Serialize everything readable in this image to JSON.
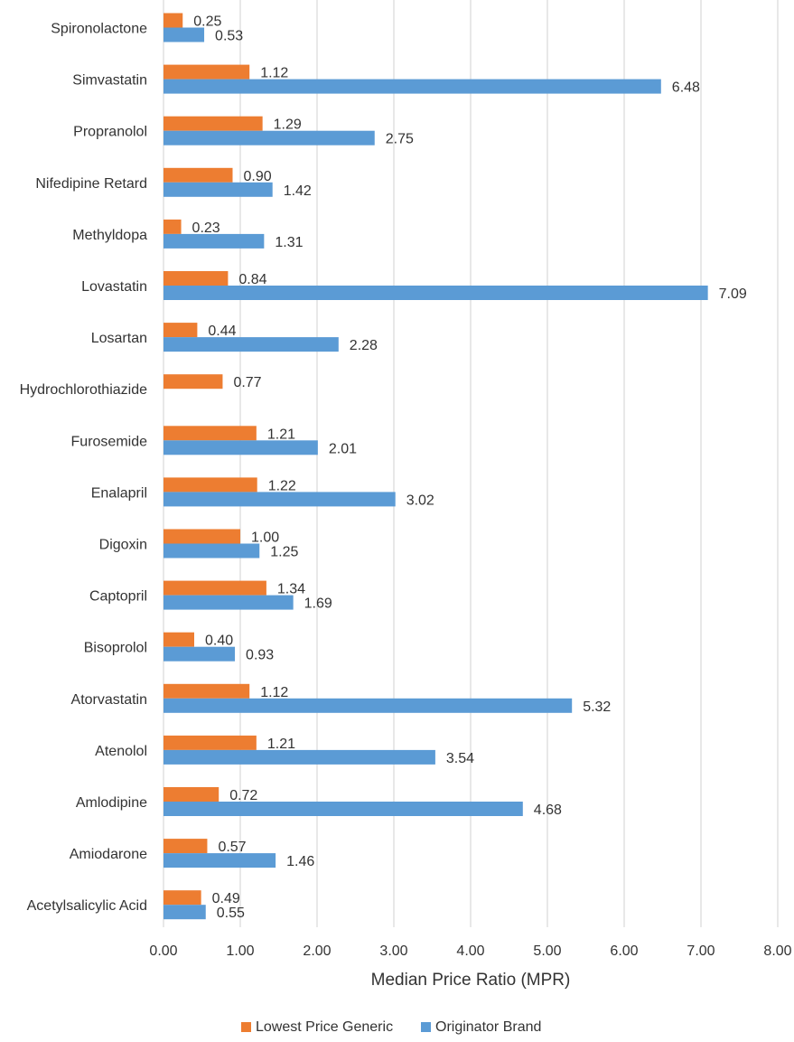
{
  "chart_data": {
    "type": "bar",
    "orientation": "horizontal",
    "categories": [
      "Spironolactone",
      "Simvastatin",
      "Propranolol",
      "Nifedipine Retard",
      "Methyldopa",
      "Lovastatin",
      "Losartan",
      "Hydrochlorothiazide",
      "Furosemide",
      "Enalapril",
      "Digoxin",
      "Captopril",
      "Bisoprolol",
      "Atorvastatin",
      "Atenolol",
      "Amlodipine",
      "Amiodarone",
      "Acetylsalicylic Acid"
    ],
    "series": [
      {
        "name": "Lowest Price Generic",
        "color": "#ed7d31",
        "values": [
          0.25,
          1.12,
          1.29,
          0.9,
          0.23,
          0.84,
          0.44,
          0.77,
          1.21,
          1.22,
          1.0,
          1.34,
          0.4,
          1.12,
          1.21,
          0.72,
          0.57,
          0.49
        ],
        "labels": [
          "0.25",
          "1.12",
          "1.29",
          "0.90",
          "0.23",
          "0.84",
          "0.44",
          "0.77",
          "1.21",
          "1.22",
          "1.00",
          "1.34",
          "0.40",
          "1.12",
          "1.21",
          "0.72",
          "0.57",
          "0.49"
        ]
      },
      {
        "name": "Originator Brand",
        "color": "#5b9bd5",
        "values": [
          0.53,
          6.48,
          2.75,
          1.42,
          1.31,
          7.09,
          2.28,
          null,
          2.01,
          3.02,
          1.25,
          1.69,
          0.93,
          5.32,
          3.54,
          4.68,
          1.46,
          0.55
        ],
        "labels": [
          "0.53",
          "6.48",
          "2.75",
          "1.42",
          "1.31",
          "7.09",
          "2.28",
          "",
          "2.01",
          "3.02",
          "1.25",
          "1.69",
          "0.93",
          "5.32",
          "3.54",
          "4.68",
          "1.46",
          "0.55"
        ]
      }
    ],
    "xlim": [
      0,
      8
    ],
    "xticks": [
      0,
      1,
      2,
      3,
      4,
      5,
      6,
      7,
      8
    ],
    "xtick_labels": [
      "0.00",
      "1.00",
      "2.00",
      "3.00",
      "4.00",
      "5.00",
      "6.00",
      "7.00",
      "8.00"
    ],
    "xlabel": "Median Price Ratio (MPR)",
    "ylabel": "",
    "title": "",
    "grid": "vertical",
    "grid_color": "#d9d9d9",
    "legend_position": "bottom"
  }
}
